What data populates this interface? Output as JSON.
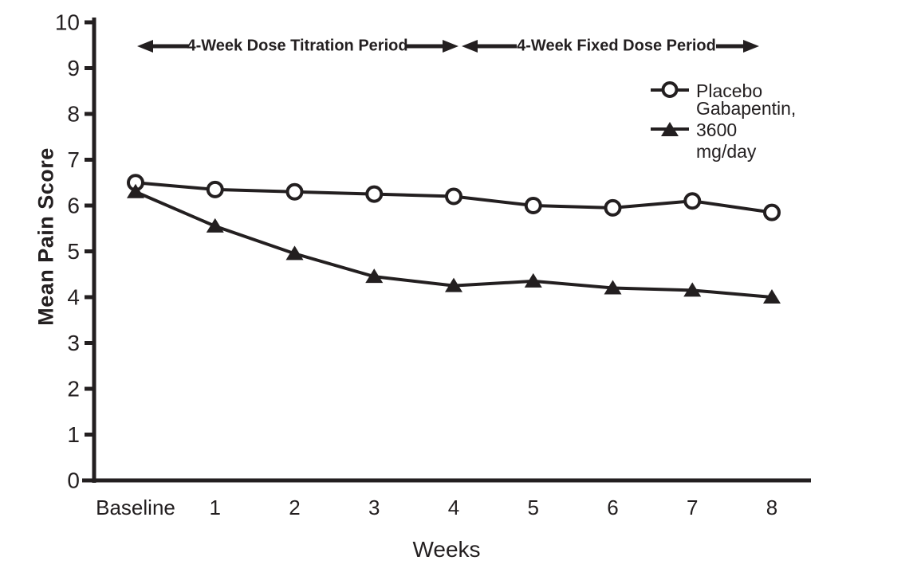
{
  "chart_data": {
    "type": "line",
    "title": "",
    "xlabel": "Weeks",
    "ylabel": "Mean Pain Score",
    "categories": [
      "Baseline",
      "1",
      "2",
      "3",
      "4",
      "5",
      "6",
      "7",
      "8"
    ],
    "y_ticks": [
      "0",
      "1",
      "2",
      "3",
      "4",
      "5",
      "6",
      "7",
      "8",
      "9",
      "10"
    ],
    "ylim": [
      0,
      10
    ],
    "grid": false,
    "line_color": "#231f20",
    "background_color": "#ffffff",
    "legend_position": "top-right",
    "series": [
      {
        "name": "Placebo",
        "marker": "open-circle",
        "color": "#231f20",
        "values": [
          6.5,
          6.35,
          6.3,
          6.25,
          6.2,
          6.0,
          5.95,
          6.1,
          5.85
        ]
      },
      {
        "name": "Gabapentin, 3600 mg/day",
        "marker": "filled-triangle",
        "color": "#231f20",
        "values": [
          6.3,
          5.55,
          4.95,
          4.45,
          4.25,
          4.35,
          4.2,
          4.15,
          4.0
        ]
      }
    ],
    "annotations": [
      {
        "label": "4-Week Dose Titration Period",
        "span_categories": [
          "Baseline",
          "4"
        ]
      },
      {
        "label": "4-Week Fixed Dose Period",
        "span_categories": [
          "4",
          "8"
        ]
      }
    ]
  }
}
